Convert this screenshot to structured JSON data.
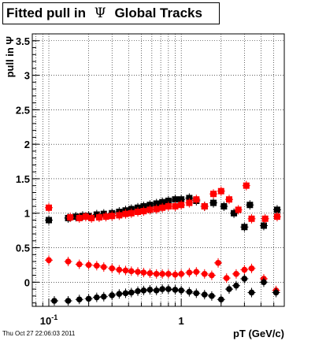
{
  "title": {
    "text_before": "Fitted pull in",
    "psi": "Ψ",
    "text_after": "Global Tracks"
  },
  "timestamp": "Thu Oct 27 22:06:03 2011",
  "colors": {
    "series_1": "#000000",
    "series_2": "#ff0000"
  },
  "chart_data": {
    "type": "scatter",
    "xlabel": "pT (GeV/c)",
    "ylabel": "pull in Ψ",
    "xscale": "log",
    "xlim": [
      0.075,
      6.0
    ],
    "ylim": [
      -0.35,
      3.6
    ],
    "grid": true,
    "x_tick_labels": [
      {
        "value": 0.1,
        "base": "10",
        "exp": "-1"
      },
      {
        "value": 1,
        "base": "1",
        "exp": ""
      }
    ],
    "y_ticks": [
      0,
      0.5,
      1,
      1.5,
      2,
      2.5,
      3,
      3.5
    ],
    "y_tick_labels": [
      "0",
      "0.5",
      "1",
      "1.5",
      "2",
      "2.5",
      "3",
      "3.5"
    ],
    "series": [
      {
        "color": "#000000",
        "marker": "square",
        "values": [
          [
            0.1,
            0.9
          ],
          [
            0.14,
            0.93
          ],
          [
            0.16,
            0.95
          ],
          [
            0.18,
            0.96
          ],
          [
            0.2,
            0.96
          ],
          [
            0.23,
            0.98
          ],
          [
            0.26,
            0.99
          ],
          [
            0.3,
            1.0
          ],
          [
            0.34,
            1.02
          ],
          [
            0.38,
            1.04
          ],
          [
            0.42,
            1.06
          ],
          [
            0.47,
            1.08
          ],
          [
            0.52,
            1.1
          ],
          [
            0.58,
            1.12
          ],
          [
            0.65,
            1.14
          ],
          [
            0.72,
            1.16
          ],
          [
            0.8,
            1.18
          ],
          [
            0.9,
            1.2
          ],
          [
            1.0,
            1.2
          ],
          [
            1.15,
            1.22
          ],
          [
            1.3,
            1.18
          ],
          [
            1.5,
            1.1
          ],
          [
            1.75,
            1.15
          ],
          [
            2.1,
            1.1
          ],
          [
            2.5,
            1.0
          ],
          [
            3.0,
            0.8
          ],
          [
            3.3,
            1.12
          ],
          [
            4.2,
            0.82
          ],
          [
            5.3,
            1.05
          ]
        ]
      },
      {
        "color": "#ff0000",
        "marker": "square",
        "values": [
          [
            0.1,
            1.08
          ],
          [
            0.145,
            0.94
          ],
          [
            0.17,
            0.93
          ],
          [
            0.19,
            0.95
          ],
          [
            0.21,
            0.93
          ],
          [
            0.24,
            0.94
          ],
          [
            0.27,
            0.95
          ],
          [
            0.3,
            0.96
          ],
          [
            0.34,
            0.97
          ],
          [
            0.38,
            0.99
          ],
          [
            0.42,
            1.0
          ],
          [
            0.47,
            1.02
          ],
          [
            0.52,
            1.03
          ],
          [
            0.58,
            1.05
          ],
          [
            0.65,
            1.06
          ],
          [
            0.72,
            1.08
          ],
          [
            0.8,
            1.1
          ],
          [
            0.9,
            1.1
          ],
          [
            1.0,
            1.12
          ],
          [
            1.15,
            1.15
          ],
          [
            1.3,
            1.2
          ],
          [
            1.5,
            1.1
          ],
          [
            1.75,
            1.28
          ],
          [
            2.0,
            1.32
          ],
          [
            2.3,
            1.2
          ],
          [
            2.7,
            1.05
          ],
          [
            3.1,
            1.4
          ],
          [
            3.4,
            0.92
          ],
          [
            4.3,
            0.92
          ],
          [
            5.3,
            0.95
          ]
        ]
      },
      {
        "color": "#ff0000",
        "marker": "circle",
        "values": [
          [
            0.1,
            0.32
          ],
          [
            0.14,
            0.3
          ],
          [
            0.17,
            0.26
          ],
          [
            0.2,
            0.25
          ],
          [
            0.23,
            0.24
          ],
          [
            0.26,
            0.22
          ],
          [
            0.3,
            0.2
          ],
          [
            0.34,
            0.18
          ],
          [
            0.38,
            0.17
          ],
          [
            0.42,
            0.16
          ],
          [
            0.47,
            0.15
          ],
          [
            0.52,
            0.14
          ],
          [
            0.58,
            0.13
          ],
          [
            0.65,
            0.12
          ],
          [
            0.72,
            0.12
          ],
          [
            0.8,
            0.12
          ],
          [
            0.9,
            0.11
          ],
          [
            1.0,
            0.12
          ],
          [
            1.15,
            0.14
          ],
          [
            1.3,
            0.15
          ],
          [
            1.5,
            0.12
          ],
          [
            1.7,
            0.1
          ],
          [
            1.9,
            0.28
          ],
          [
            2.2,
            0.06
          ],
          [
            2.6,
            0.12
          ],
          [
            3.0,
            0.18
          ],
          [
            3.4,
            0.2
          ],
          [
            4.2,
            0.05
          ],
          [
            5.2,
            -0.12
          ]
        ]
      },
      {
        "color": "#000000",
        "marker": "circle",
        "values": [
          [
            0.11,
            -0.27
          ],
          [
            0.14,
            -0.27
          ],
          [
            0.17,
            -0.25
          ],
          [
            0.2,
            -0.24
          ],
          [
            0.23,
            -0.22
          ],
          [
            0.26,
            -0.21
          ],
          [
            0.3,
            -0.19
          ],
          [
            0.34,
            -0.17
          ],
          [
            0.38,
            -0.16
          ],
          [
            0.42,
            -0.15
          ],
          [
            0.47,
            -0.13
          ],
          [
            0.52,
            -0.12
          ],
          [
            0.58,
            -0.11
          ],
          [
            0.65,
            -0.12
          ],
          [
            0.72,
            -0.1
          ],
          [
            0.8,
            -0.1
          ],
          [
            0.9,
            -0.11
          ],
          [
            1.0,
            -0.12
          ],
          [
            1.15,
            -0.14
          ],
          [
            1.3,
            -0.16
          ],
          [
            1.5,
            -0.18
          ],
          [
            1.7,
            -0.2
          ],
          [
            2.0,
            -0.25
          ],
          [
            2.3,
            -0.1
          ],
          [
            2.6,
            -0.05
          ],
          [
            3.0,
            0.05
          ],
          [
            3.4,
            -0.15
          ],
          [
            4.2,
            0.0
          ],
          [
            5.2,
            -0.15
          ]
        ]
      }
    ]
  }
}
